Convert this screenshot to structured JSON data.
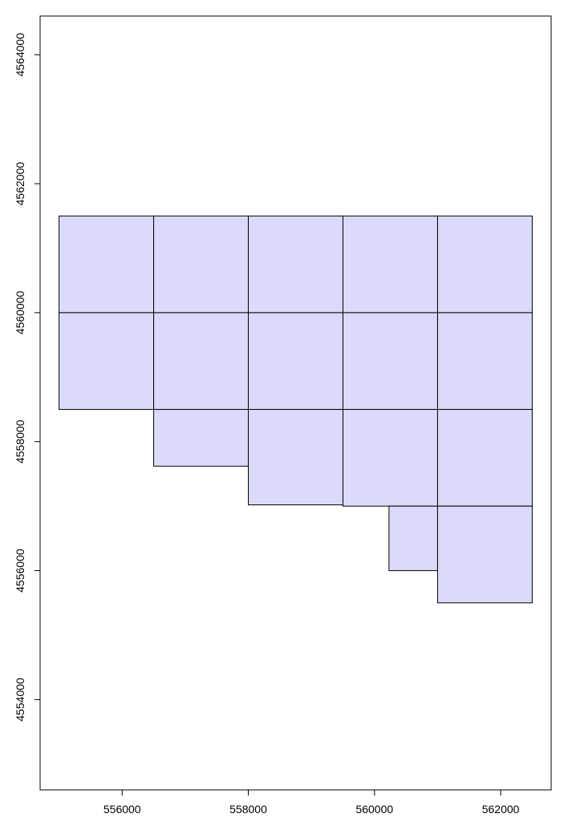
{
  "chart_data": {
    "type": "map-polygons",
    "title": "",
    "xlabel": "",
    "ylabel": "",
    "xlim": [
      554700,
      562800
    ],
    "ylim": [
      4552600,
      4564600
    ],
    "x_ticks": [
      556000,
      558000,
      560000,
      562000
    ],
    "y_ticks": [
      4554000,
      4556000,
      4558000,
      4560000,
      4562000,
      4564000
    ],
    "x_tick_labels": [
      "556000",
      "558000",
      "560000",
      "562000"
    ],
    "y_tick_labels": [
      "4554000",
      "4556000",
      "4558000",
      "4560000",
      "4562000",
      "4564000"
    ],
    "fill_color": "#dadafa",
    "stroke_color": "#000000",
    "grid": false,
    "polygons": [
      {
        "xmin": 555000,
        "xmax": 556500,
        "ymin": 4560000,
        "ymax": 4561500
      },
      {
        "xmin": 556500,
        "xmax": 558000,
        "ymin": 4560000,
        "ymax": 4561500
      },
      {
        "xmin": 558000,
        "xmax": 559500,
        "ymin": 4560000,
        "ymax": 4561500
      },
      {
        "xmin": 559500,
        "xmax": 561000,
        "ymin": 4560000,
        "ymax": 4561500
      },
      {
        "xmin": 561000,
        "xmax": 562500,
        "ymin": 4560000,
        "ymax": 4561500
      },
      {
        "xmin": 555000,
        "xmax": 556500,
        "ymin": 4558500,
        "ymax": 4560000
      },
      {
        "xmin": 556500,
        "xmax": 558000,
        "ymin": 4558500,
        "ymax": 4560000
      },
      {
        "xmin": 558000,
        "xmax": 559500,
        "ymin": 4558500,
        "ymax": 4560000
      },
      {
        "xmin": 559500,
        "xmax": 561000,
        "ymin": 4558500,
        "ymax": 4560000
      },
      {
        "xmin": 561000,
        "xmax": 562500,
        "ymin": 4558500,
        "ymax": 4560000
      },
      {
        "xmin": 556500,
        "xmax": 558000,
        "ymin": 4557620,
        "ymax": 4558500
      },
      {
        "xmin": 558000,
        "xmax": 559500,
        "ymin": 4557020,
        "ymax": 4558500
      },
      {
        "xmin": 559500,
        "xmax": 561000,
        "ymin": 4557000,
        "ymax": 4558500
      },
      {
        "xmin": 561000,
        "xmax": 562500,
        "ymin": 4557000,
        "ymax": 4558500
      },
      {
        "xmin": 560230,
        "xmax": 561000,
        "ymin": 4556000,
        "ymax": 4557000
      },
      {
        "xmin": 561000,
        "xmax": 562500,
        "ymin": 4555500,
        "ymax": 4557000
      }
    ]
  }
}
